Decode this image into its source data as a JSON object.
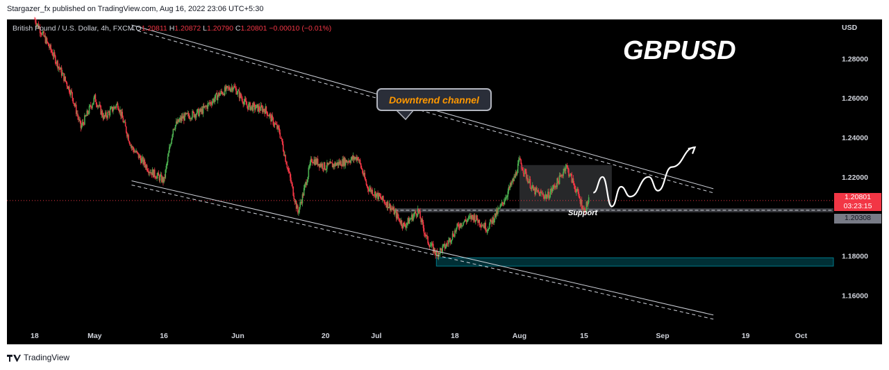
{
  "publisher_line": "Stargazer_fx published on TradingView.com, Aug 16, 2022 23:06 UTC+5:30",
  "brand": "TradingView",
  "legend": {
    "symbol": "British Pound / U.S. Dollar, 4h, FXCM",
    "o_label": "O",
    "o_value": "1.20811",
    "h_label": "H",
    "h_value": "1.20872",
    "l_label": "L",
    "l_value": "1.20790",
    "c_label": "C",
    "c_value": "1.20801",
    "change": "−0.00010 (−0.01%)"
  },
  "annotations": {
    "big_title": "GBPUSD",
    "channel_label": "Downtrend channel",
    "support_label": "Support"
  },
  "price_tags": {
    "last_price": "1.20801",
    "countdown": "03:23:15",
    "support_price": "1.20308"
  },
  "colors": {
    "up": "#26a69a",
    "up_body": "#4caf50",
    "down": "#f23645",
    "background": "#000000",
    "channel": "#d1d4dc",
    "support_zone": "#787b86",
    "demand_zone": "#00bcd4"
  },
  "chart_data": {
    "type": "candlestick",
    "title": "British Pound / U.S. Dollar, 4h, FXCM",
    "currency": "USD",
    "y_ticks": [
      "1.28000",
      "1.26000",
      "1.24000",
      "1.22000",
      "1.18000",
      "1.16000"
    ],
    "x_ticks": [
      "18",
      "May",
      "16",
      "Jun",
      "20",
      "Jul",
      "18",
      "Aug",
      "15",
      "Sep",
      "19",
      "Oct"
    ],
    "ylim": [
      1.145,
      1.2998
    ],
    "x_range": [
      "2022-04-12",
      "2022-10-08"
    ],
    "last_close": 1.20801,
    "support_level": 1.20308,
    "price_path": [
      {
        "date": "2022-04-18",
        "close": 1.3
      },
      {
        "date": "2022-04-22",
        "close": 1.282
      },
      {
        "date": "2022-04-26",
        "close": 1.262
      },
      {
        "date": "2022-04-28",
        "close": 1.245
      },
      {
        "date": "2022-05-01",
        "close": 1.26
      },
      {
        "date": "2022-05-03",
        "close": 1.25
      },
      {
        "date": "2022-05-06",
        "close": 1.257
      },
      {
        "date": "2022-05-09",
        "close": 1.235
      },
      {
        "date": "2022-05-13",
        "close": 1.223
      },
      {
        "date": "2022-05-16",
        "close": 1.218
      },
      {
        "date": "2022-05-18",
        "close": 1.245
      },
      {
        "date": "2022-05-20",
        "close": 1.25
      },
      {
        "date": "2022-05-24",
        "close": 1.253
      },
      {
        "date": "2022-05-28",
        "close": 1.262
      },
      {
        "date": "2022-05-31",
        "close": 1.266
      },
      {
        "date": "2022-06-03",
        "close": 1.256
      },
      {
        "date": "2022-06-07",
        "close": 1.254
      },
      {
        "date": "2022-06-10",
        "close": 1.243
      },
      {
        "date": "2022-06-14",
        "close": 1.202
      },
      {
        "date": "2022-06-15",
        "close": 1.21
      },
      {
        "date": "2022-06-17",
        "close": 1.229
      },
      {
        "date": "2022-06-20",
        "close": 1.225
      },
      {
        "date": "2022-06-23",
        "close": 1.227
      },
      {
        "date": "2022-06-27",
        "close": 1.23
      },
      {
        "date": "2022-06-29",
        "close": 1.215
      },
      {
        "date": "2022-07-04",
        "close": 1.205
      },
      {
        "date": "2022-07-07",
        "close": 1.195
      },
      {
        "date": "2022-07-10",
        "close": 1.203
      },
      {
        "date": "2022-07-12",
        "close": 1.188
      },
      {
        "date": "2022-07-14",
        "close": 1.181
      },
      {
        "date": "2022-07-16",
        "close": 1.185
      },
      {
        "date": "2022-07-19",
        "close": 1.196
      },
      {
        "date": "2022-07-22",
        "close": 1.2
      },
      {
        "date": "2022-07-25",
        "close": 1.194
      },
      {
        "date": "2022-07-28",
        "close": 1.205
      },
      {
        "date": "2022-07-31",
        "close": 1.22
      },
      {
        "date": "2022-08-01",
        "close": 1.228
      },
      {
        "date": "2022-08-04",
        "close": 1.213
      },
      {
        "date": "2022-08-07",
        "close": 1.21
      },
      {
        "date": "2022-08-10",
        "close": 1.22
      },
      {
        "date": "2022-08-11",
        "close": 1.226
      },
      {
        "date": "2022-08-13",
        "close": 1.215
      },
      {
        "date": "2022-08-15",
        "close": 1.203
      },
      {
        "date": "2022-08-16",
        "close": 1.208
      }
    ],
    "channel_upper": [
      {
        "date": "2022-05-09",
        "price": 1.297
      },
      {
        "date": "2022-09-12",
        "price": 1.214
      }
    ],
    "channel_lower": [
      {
        "date": "2022-05-09",
        "price": 1.218
      },
      {
        "date": "2022-09-12",
        "price": 1.15
      }
    ],
    "consolidation_box": {
      "from": "2022-08-01",
      "to": "2022-08-21",
      "low": 1.203,
      "high": 1.226
    },
    "demand_zone": {
      "from": "2022-07-14",
      "to": "2022-10-08",
      "low": 1.1748,
      "high": 1.179
    },
    "projection_path": [
      {
        "date": "2022-08-17",
        "close": 1.212
      },
      {
        "date": "2022-08-19",
        "close": 1.22
      },
      {
        "date": "2022-08-21",
        "close": 1.205
      },
      {
        "date": "2022-08-23",
        "close": 1.215
      },
      {
        "date": "2022-08-25",
        "close": 1.21
      },
      {
        "date": "2022-08-29",
        "close": 1.22
      },
      {
        "date": "2022-08-31",
        "close": 1.213
      },
      {
        "date": "2022-09-03",
        "close": 1.225
      },
      {
        "date": "2022-09-08",
        "close": 1.235
      }
    ]
  }
}
